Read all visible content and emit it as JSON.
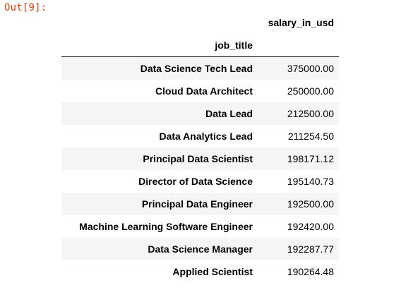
{
  "cell": {
    "prompt": "Out[9]:"
  },
  "dataframe": {
    "column_header": "salary_in_usd",
    "index_name": "job_title",
    "rows": [
      {
        "job_title": "Data Science Tech Lead",
        "salary_in_usd": "375000.00"
      },
      {
        "job_title": "Cloud Data Architect",
        "salary_in_usd": "250000.00"
      },
      {
        "job_title": "Data Lead",
        "salary_in_usd": "212500.00"
      },
      {
        "job_title": "Data Analytics Lead",
        "salary_in_usd": "211254.50"
      },
      {
        "job_title": "Principal Data Scientist",
        "salary_in_usd": "198171.12"
      },
      {
        "job_title": "Director of Data Science",
        "salary_in_usd": "195140.73"
      },
      {
        "job_title": "Principal Data Engineer",
        "salary_in_usd": "192500.00"
      },
      {
        "job_title": "Machine Learning Software Engineer",
        "salary_in_usd": "192420.00"
      },
      {
        "job_title": "Data Science Manager",
        "salary_in_usd": "192287.77"
      },
      {
        "job_title": "Applied Scientist",
        "salary_in_usd": "190264.48"
      }
    ]
  },
  "colors": {
    "prompt": "#D84315",
    "striped_row": "#f5f5f5",
    "text": "#000000"
  }
}
